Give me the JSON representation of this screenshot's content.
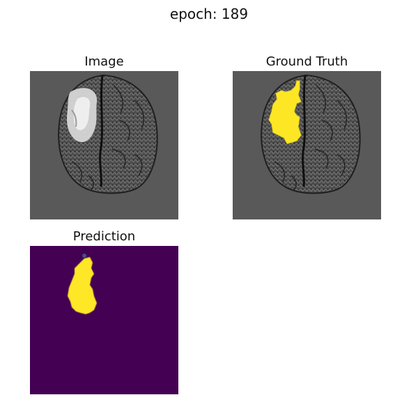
{
  "figure": {
    "title": "epoch: 189"
  },
  "panels": [
    {
      "title": "Image"
    },
    {
      "title": "Ground Truth"
    },
    {
      "title": "Prediction"
    }
  ],
  "colors": {
    "mri_background": "#595959",
    "tumor_hyperintensity": "#d6d6d6",
    "mask_yellow": "#fde725",
    "prediction_background": "#440154"
  }
}
